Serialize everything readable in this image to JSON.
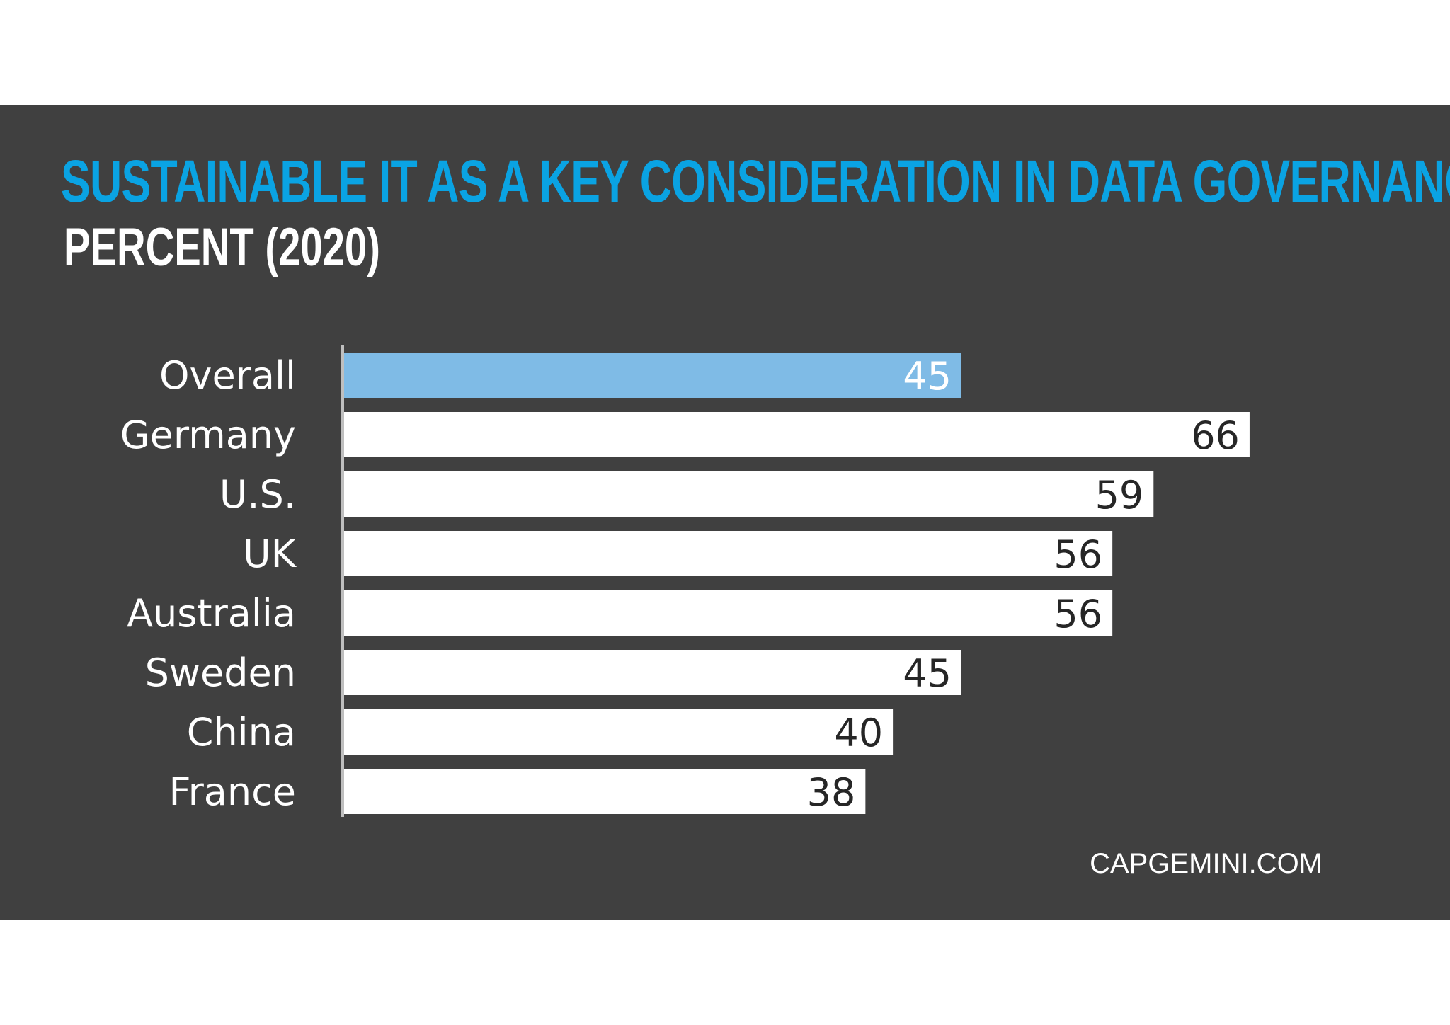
{
  "chart_data": {
    "type": "bar",
    "orientation": "horizontal",
    "title": "SUSTAINABLE IT AS A KEY CONSIDERATION IN DATA GOVERNANCE",
    "subtitle": "PERCENT (2020)",
    "categories": [
      "Overall",
      "Germany",
      "U.S.",
      "UK",
      "Australia",
      "Sweden",
      "China",
      "France"
    ],
    "values": [
      45,
      66,
      59,
      56,
      56,
      45,
      40,
      38
    ],
    "value_labels": [
      "45",
      "66",
      "59",
      "56",
      "56",
      "45",
      "40",
      "38"
    ],
    "highlight_index": 0,
    "xlim": [
      0,
      100
    ],
    "grid": false,
    "legend": "none",
    "colors": {
      "background": "#404040",
      "title": "#0aa3e3",
      "highlight_bar": "#7fbbe6",
      "bar": "#ffffff",
      "highlight_label": "#ffffff",
      "label": "#262626",
      "axis": "#bfbfbf"
    }
  },
  "footer": {
    "source": "CAPGEMINI.COM"
  }
}
